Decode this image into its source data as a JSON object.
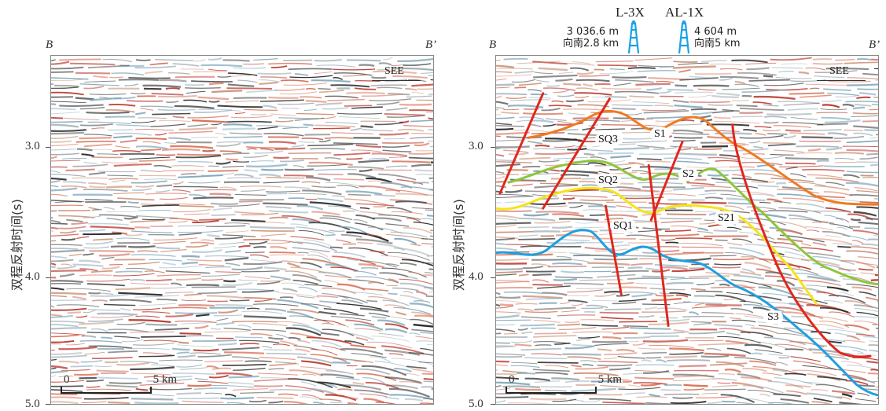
{
  "labels": {
    "ylabel": "双程反射时间(s)",
    "edge_start": "B",
    "edge_end": "B’",
    "see": "SEE",
    "y_ticks": [
      "3.0",
      "4.0",
      "5.0"
    ],
    "scale_start": "0",
    "scale_end": "5 km"
  },
  "wells": [
    {
      "name": "L-3X",
      "note_line1": "3 036.6 m",
      "note_line2": "向南2.8 km"
    },
    {
      "name": "AL-1X",
      "note_line1": "4 604 m",
      "note_line2": "向南5 km"
    }
  ],
  "horizons": [
    {
      "id": "S1",
      "color": "#f07a1f"
    },
    {
      "id": "S2",
      "color": "#8cc63f"
    },
    {
      "id": "S21",
      "color": "#f5e41a"
    },
    {
      "id": "S3",
      "color": "#1e9fe0"
    }
  ],
  "sequences": [
    "SQ3",
    "SQ2",
    "SQ1"
  ],
  "fault_color": "#e1261c"
}
